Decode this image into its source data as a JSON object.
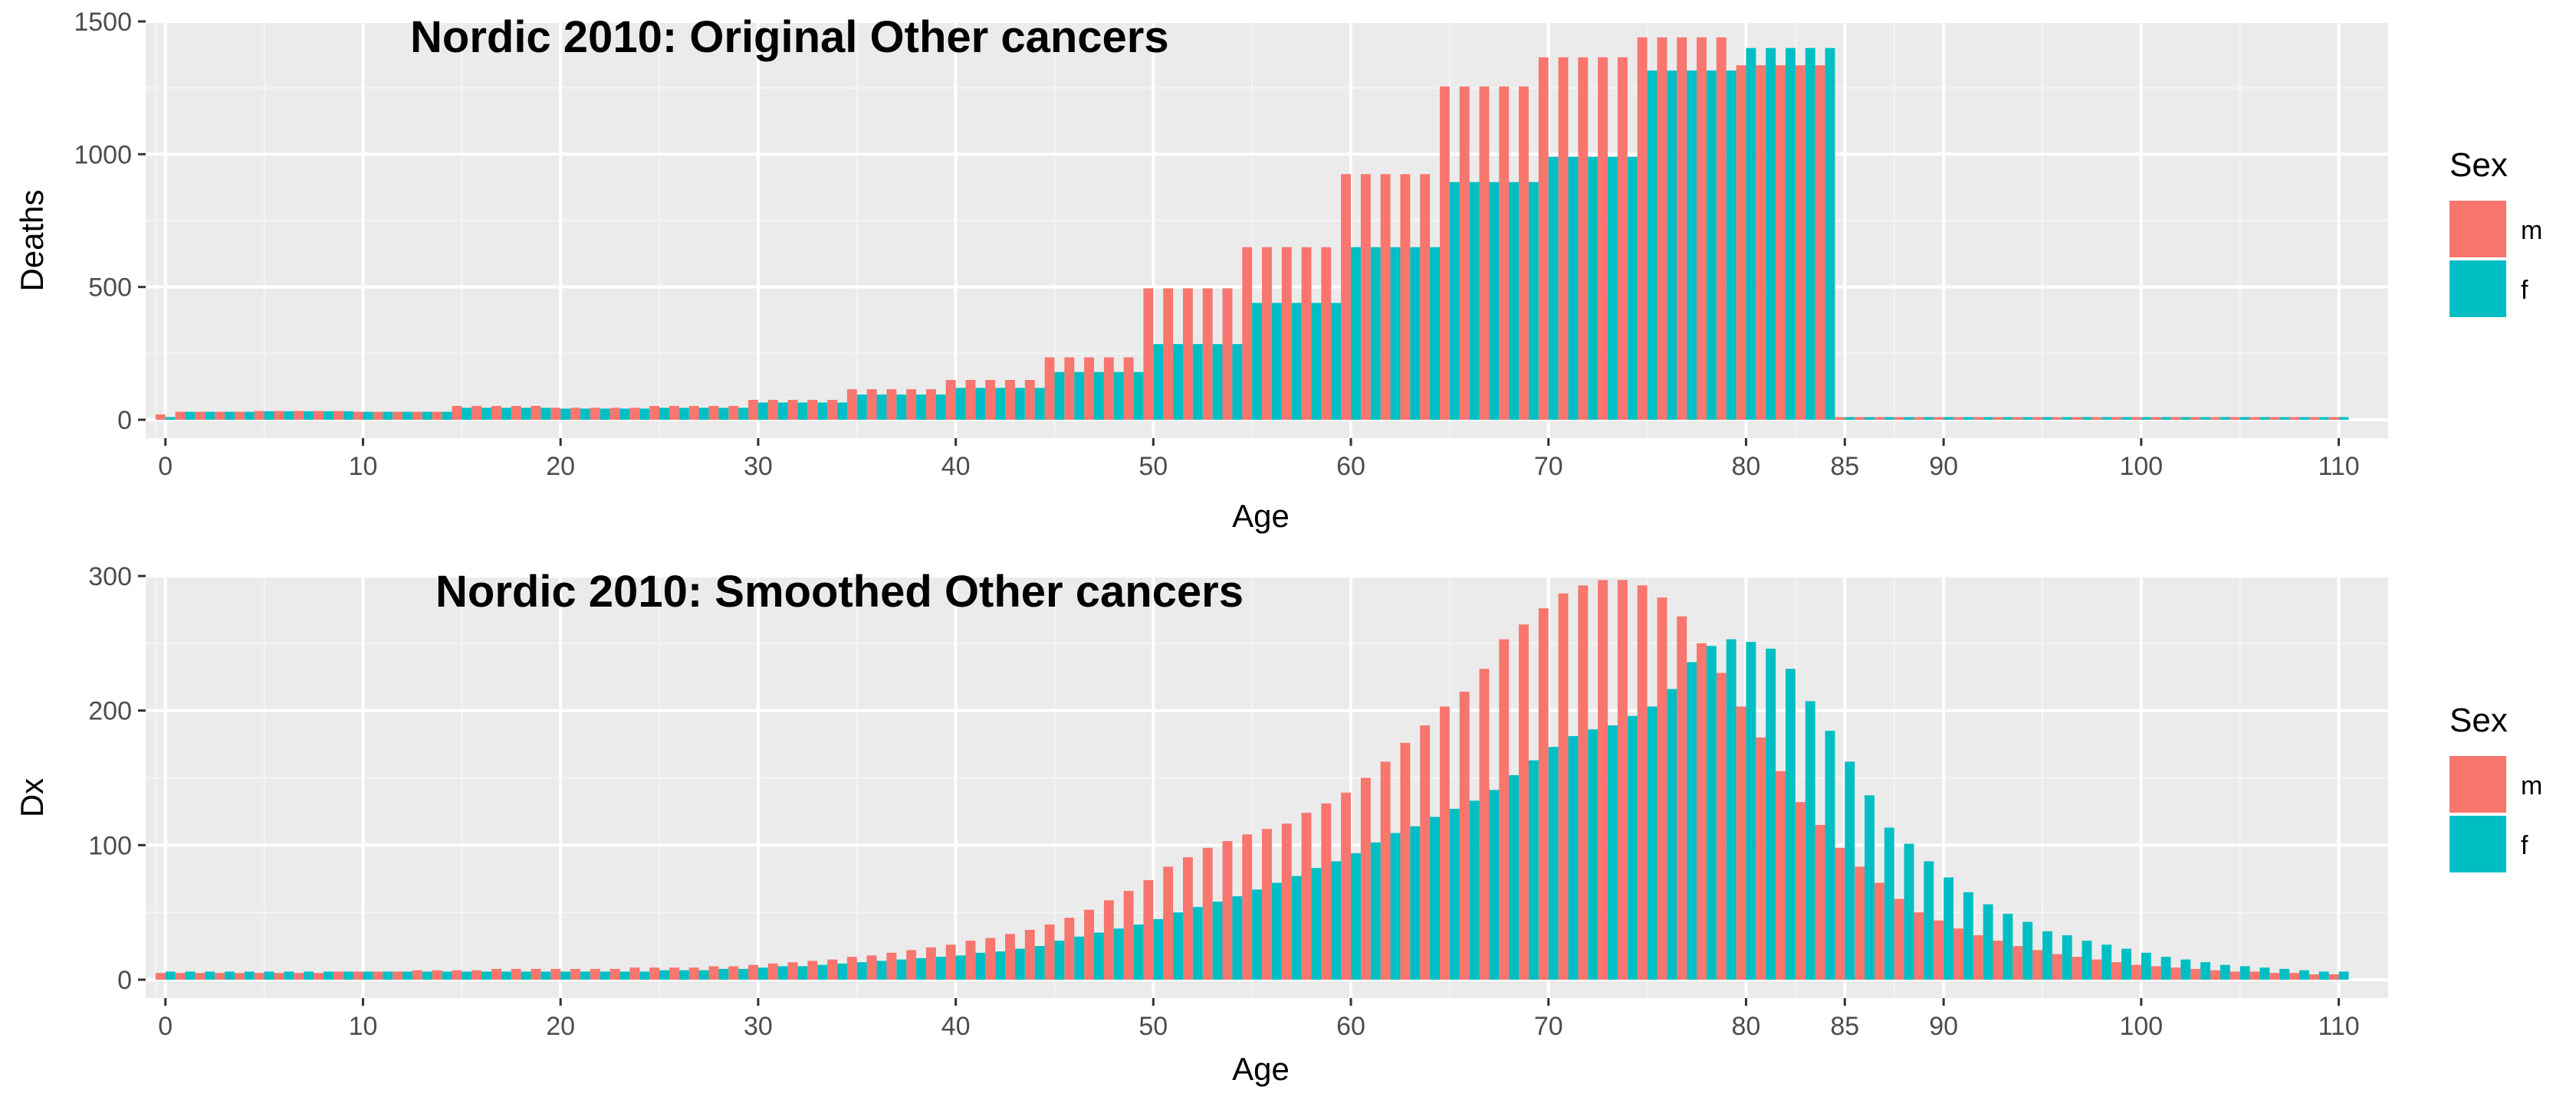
{
  "colors": {
    "m": "#F8766D",
    "f": "#00BFC4"
  },
  "chart_data": [
    {
      "type": "bar",
      "title": "Nordic 2010: Original Other cancers",
      "xlabel": "Age",
      "ylabel": "Deaths",
      "xlim": [
        -1,
        112.5
      ],
      "ylim": [
        0,
        1500
      ],
      "x_ticks": [
        0,
        10,
        20,
        30,
        40,
        50,
        60,
        70,
        80,
        85,
        90,
        100,
        110
      ],
      "y_ticks": [
        0,
        500,
        1000,
        1500
      ],
      "grid": true,
      "legend": {
        "title": "Sex",
        "position": "right",
        "entries": [
          "m",
          "f"
        ]
      },
      "x": [
        0,
        1,
        2,
        3,
        4,
        5,
        6,
        7,
        8,
        9,
        10,
        11,
        12,
        13,
        14,
        15,
        16,
        17,
        18,
        19,
        20,
        21,
        22,
        23,
        24,
        25,
        26,
        27,
        28,
        29,
        30,
        31,
        32,
        33,
        34,
        35,
        36,
        37,
        38,
        39,
        40,
        41,
        42,
        43,
        44,
        45,
        46,
        47,
        48,
        49,
        50,
        51,
        52,
        53,
        54,
        55,
        56,
        57,
        58,
        59,
        60,
        61,
        62,
        63,
        64,
        65,
        66,
        67,
        68,
        69,
        70,
        71,
        72,
        73,
        74,
        75,
        76,
        77,
        78,
        79,
        80,
        81,
        82,
        83,
        84,
        85,
        86,
        87,
        88,
        89,
        90,
        91,
        92,
        93,
        94,
        95,
        96,
        97,
        98,
        99,
        100,
        101,
        102,
        103,
        104,
        105,
        106,
        107,
        108,
        109,
        110
      ],
      "series": [
        {
          "name": "m",
          "values": [
            20,
            30,
            30,
            30,
            30,
            33,
            33,
            33,
            33,
            33,
            30,
            30,
            30,
            30,
            30,
            52,
            52,
            52,
            52,
            52,
            45,
            45,
            45,
            45,
            45,
            52,
            52,
            52,
            52,
            52,
            75,
            75,
            75,
            75,
            75,
            115,
            115,
            115,
            115,
            115,
            150,
            150,
            150,
            150,
            150,
            235,
            235,
            235,
            235,
            235,
            495,
            495,
            495,
            495,
            495,
            650,
            650,
            650,
            650,
            650,
            925,
            925,
            925,
            925,
            925,
            1255,
            1255,
            1255,
            1255,
            1255,
            1365,
            1365,
            1365,
            1365,
            1365,
            1440,
            1440,
            1440,
            1440,
            1440,
            1335,
            1335,
            1335,
            1335,
            1335,
            10,
            10,
            10,
            10,
            10,
            10,
            10,
            10,
            10,
            10,
            10,
            10,
            10,
            10,
            10,
            10,
            10,
            10,
            10,
            10,
            10,
            10,
            10,
            10,
            10,
            10
          ]
        },
        {
          "name": "f",
          "values": [
            10,
            30,
            30,
            30,
            30,
            32,
            32,
            32,
            32,
            32,
            30,
            30,
            30,
            30,
            30,
            45,
            45,
            45,
            45,
            45,
            42,
            42,
            42,
            42,
            42,
            45,
            45,
            45,
            45,
            45,
            65,
            65,
            65,
            65,
            65,
            95,
            95,
            95,
            95,
            95,
            120,
            120,
            120,
            120,
            120,
            180,
            180,
            180,
            180,
            180,
            285,
            285,
            285,
            285,
            285,
            440,
            440,
            440,
            440,
            440,
            650,
            650,
            650,
            650,
            650,
            895,
            895,
            895,
            895,
            895,
            990,
            990,
            990,
            990,
            990,
            1315,
            1315,
            1315,
            1315,
            1315,
            1400,
            1400,
            1400,
            1400,
            1400,
            10,
            10,
            10,
            10,
            10,
            10,
            10,
            10,
            10,
            10,
            10,
            10,
            10,
            10,
            10,
            10,
            10,
            10,
            10,
            10,
            10,
            10,
            10,
            10,
            10,
            10
          ]
        }
      ]
    },
    {
      "type": "bar",
      "title": "Nordic 2010: Smoothed Other cancers",
      "xlabel": "Age",
      "ylabel": "Dx",
      "xlim": [
        -1,
        112.5
      ],
      "ylim": [
        0,
        300
      ],
      "x_ticks": [
        0,
        10,
        20,
        30,
        40,
        50,
        60,
        70,
        80,
        85,
        90,
        100,
        110
      ],
      "y_ticks": [
        0,
        100,
        200,
        300
      ],
      "grid": true,
      "legend": {
        "title": "Sex",
        "position": "right",
        "entries": [
          "m",
          "f"
        ]
      },
      "x": [
        0,
        1,
        2,
        3,
        4,
        5,
        6,
        7,
        8,
        9,
        10,
        11,
        12,
        13,
        14,
        15,
        16,
        17,
        18,
        19,
        20,
        21,
        22,
        23,
        24,
        25,
        26,
        27,
        28,
        29,
        30,
        31,
        32,
        33,
        34,
        35,
        36,
        37,
        38,
        39,
        40,
        41,
        42,
        43,
        44,
        45,
        46,
        47,
        48,
        49,
        50,
        51,
        52,
        53,
        54,
        55,
        56,
        57,
        58,
        59,
        60,
        61,
        62,
        63,
        64,
        65,
        66,
        67,
        68,
        69,
        70,
        71,
        72,
        73,
        74,
        75,
        76,
        77,
        78,
        79,
        80,
        81,
        82,
        83,
        84,
        85,
        86,
        87,
        88,
        89,
        90,
        91,
        92,
        93,
        94,
        95,
        96,
        97,
        98,
        99,
        100,
        101,
        102,
        103,
        104,
        105,
        106,
        107,
        108,
        109,
        110
      ],
      "series": [
        {
          "name": "m",
          "values": [
            5,
            5,
            5,
            5,
            5,
            5,
            5,
            5,
            5,
            6,
            6,
            6,
            6,
            7,
            7,
            7,
            7,
            8,
            8,
            8,
            8,
            8,
            8,
            8,
            9,
            9,
            9,
            9,
            10,
            10,
            11,
            12,
            13,
            14,
            15,
            17,
            18,
            20,
            22,
            24,
            26,
            29,
            31,
            34,
            37,
            41,
            46,
            52,
            59,
            66,
            74,
            84,
            91,
            98,
            103,
            108,
            112,
            116,
            124,
            131,
            139,
            150,
            162,
            176,
            189,
            203,
            214,
            231,
            253,
            264,
            276,
            287,
            293,
            297,
            297,
            293,
            284,
            270,
            250,
            228,
            203,
            180,
            155,
            132,
            115,
            98,
            84,
            72,
            60,
            50,
            44,
            38,
            33,
            29,
            25,
            22,
            19,
            17,
            15,
            13,
            11,
            10,
            9,
            8,
            7,
            6,
            6,
            5,
            5,
            4,
            4
          ]
        },
        {
          "name": "f",
          "values": [
            6,
            6,
            6,
            6,
            6,
            6,
            6,
            6,
            6,
            6,
            6,
            6,
            6,
            6,
            6,
            6,
            6,
            6,
            6,
            6,
            6,
            6,
            6,
            6,
            6,
            7,
            7,
            7,
            8,
            8,
            9,
            10,
            10,
            11,
            12,
            13,
            14,
            15,
            16,
            17,
            18,
            20,
            21,
            23,
            25,
            29,
            32,
            35,
            38,
            41,
            45,
            50,
            54,
            58,
            62,
            67,
            72,
            77,
            83,
            88,
            94,
            102,
            109,
            114,
            121,
            127,
            133,
            141,
            152,
            163,
            173,
            181,
            186,
            189,
            196,
            203,
            216,
            236,
            248,
            253,
            251,
            246,
            231,
            207,
            185,
            162,
            137,
            113,
            101,
            88,
            76,
            65,
            56,
            49,
            43,
            36,
            33,
            29,
            26,
            23,
            20,
            17,
            15,
            13,
            11,
            10,
            9,
            8,
            7,
            6,
            6
          ]
        }
      ]
    }
  ]
}
